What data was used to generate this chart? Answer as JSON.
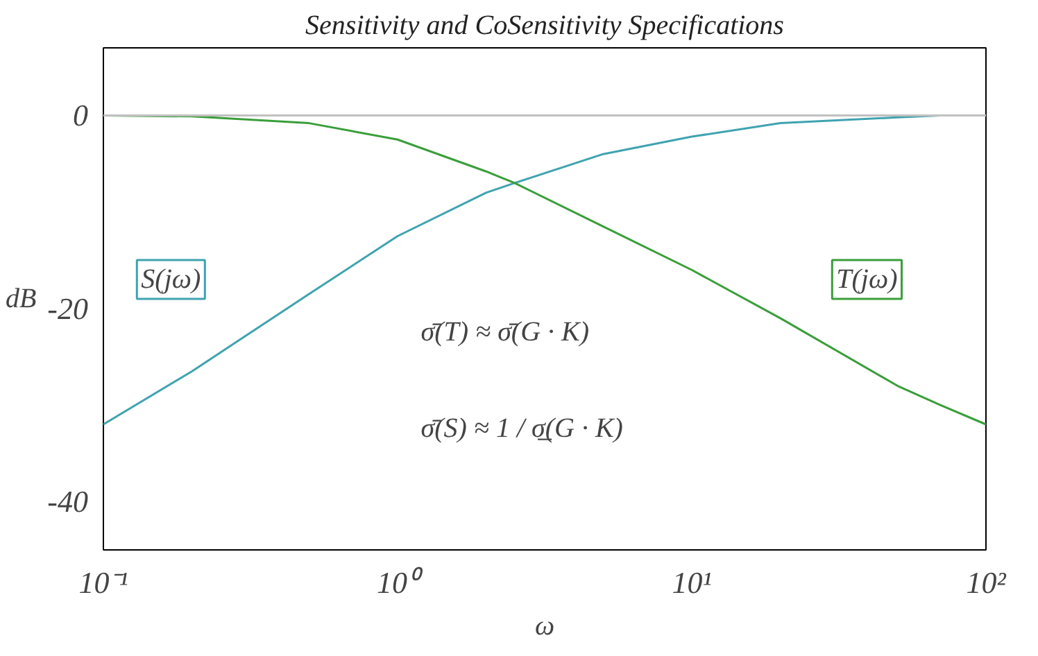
{
  "chart_data": {
    "type": "line",
    "title": "Sensitivity and CoSensitivity Specifications",
    "xlabel": "ω",
    "ylabel": "dB",
    "log": "x",
    "x": [
      0.1,
      0.2,
      0.5,
      1,
      2,
      2.5,
      5,
      10,
      20,
      50,
      70,
      100
    ],
    "series": [
      {
        "name": "S(jω)",
        "color": "#3fa3b0",
        "values": [
          -32,
          -26.5,
          -18.5,
          -12.5,
          -8,
          -7,
          -4,
          -2.2,
          -0.8,
          -0.2,
          0,
          null
        ]
      },
      {
        "name": "T(jω)",
        "color": "#3a9e3a",
        "values": [
          0,
          -0.1,
          -0.8,
          -2.5,
          -5.8,
          -7,
          -11.5,
          -16,
          -21,
          -28,
          -30,
          -32
        ]
      }
    ],
    "xlim": [
      0.1,
      100
    ],
    "xticks": [
      {
        "value": 0.1,
        "label": "10⁻¹"
      },
      {
        "value": 1,
        "label": "10⁰"
      },
      {
        "value": 10,
        "label": "10¹"
      },
      {
        "value": 100,
        "label": "10²"
      }
    ],
    "ylim": [
      -45,
      7
    ],
    "yticks": [
      0,
      -20,
      -40
    ],
    "ref_lines": [
      {
        "axis": "y",
        "value": 0,
        "color": "#c0c0c0"
      }
    ],
    "annotations": [
      "σ̄(T) ≈ σ̄(G · K)",
      "σ̄(S) ≈ 1 / σ̲(G · K)"
    ],
    "grid": false,
    "marker": "none",
    "line_style": "solid"
  }
}
